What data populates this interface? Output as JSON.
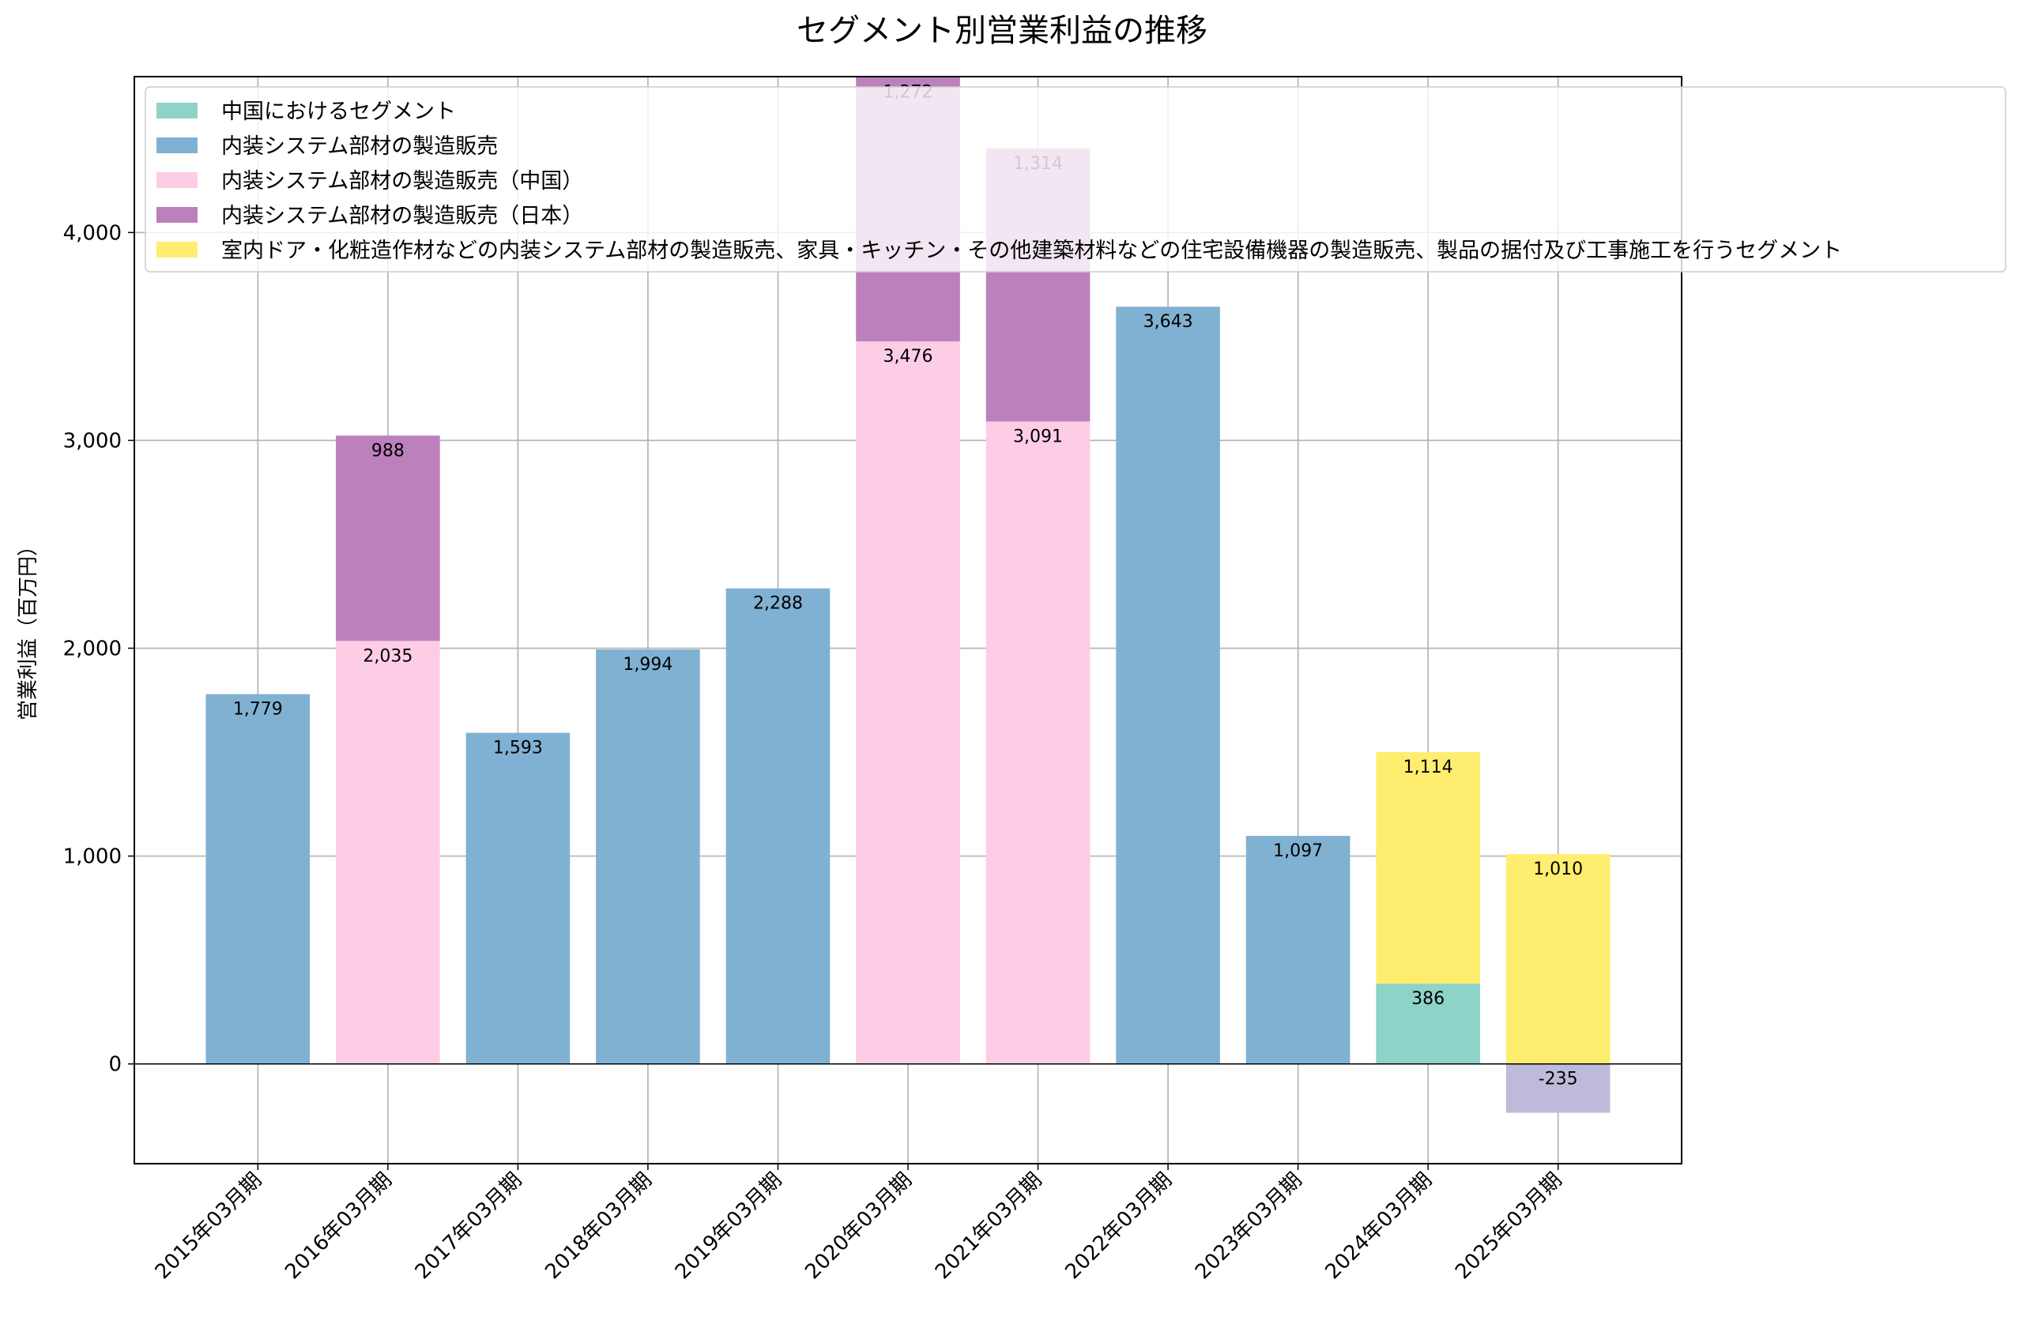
{
  "chart_data": {
    "type": "bar",
    "stacked": true,
    "title": "セグメント別営業利益の推移",
    "xlabel": "",
    "ylabel": "営業利益（百万円）",
    "ylim": [
      -480,
      4750
    ],
    "yticks": [
      0,
      1000,
      2000,
      3000,
      4000
    ],
    "ytick_labels": [
      "0",
      "1,000",
      "2,000",
      "3,000",
      "4,000"
    ],
    "grid": true,
    "legend_position": "top-left",
    "categories": [
      "2015年03月期",
      "2016年03月期",
      "2017年03月期",
      "2018年03月期",
      "2019年03月期",
      "2020年03月期",
      "2021年03月期",
      "2022年03月期",
      "2023年03月期",
      "2024年03月期",
      "2025年03月期"
    ],
    "series": [
      {
        "name": "中国におけるセグメント",
        "color": "#8dd3c7",
        "values": [
          null,
          null,
          null,
          null,
          null,
          null,
          null,
          null,
          null,
          386,
          null
        ]
      },
      {
        "name": "内装システム部材の製造販売",
        "color": "#80b1d3",
        "values": [
          1779,
          null,
          1593,
          1994,
          2288,
          null,
          null,
          3643,
          1097,
          null,
          null
        ]
      },
      {
        "name": "内装システム部材の製造販売（中国）",
        "color": "#fccde5",
        "values": [
          null,
          2035,
          null,
          null,
          null,
          3476,
          3091,
          null,
          null,
          null,
          null
        ]
      },
      {
        "name": "内装システム部材の製造販売（日本）",
        "color": "#bc80bd",
        "values": [
          null,
          988,
          null,
          null,
          null,
          1272,
          1314,
          null,
          null,
          null,
          null
        ]
      },
      {
        "name": "室内ドア・化粧造作材などの内装システム部材の製造販売、家具・キッチン・その他建築材料などの住宅設備機器の製造販売、製品の据付及び工事施工を行うセグメント",
        "color": "#ffed6f",
        "values": [
          null,
          null,
          null,
          null,
          null,
          null,
          null,
          null,
          null,
          1114,
          1010
        ]
      },
      {
        "name": "",
        "legend": false,
        "color": "#bebada",
        "values": [
          null,
          null,
          null,
          null,
          null,
          null,
          null,
          null,
          null,
          null,
          -235
        ]
      }
    ],
    "data_labels": [
      "1,779",
      "2,035",
      "988",
      "1,593",
      "1,994",
      "2,288",
      "3,476",
      "1,272",
      "3,091",
      "1,314",
      "3,643",
      "1,097",
      "386",
      "1,114",
      "1,010",
      "-235"
    ]
  }
}
